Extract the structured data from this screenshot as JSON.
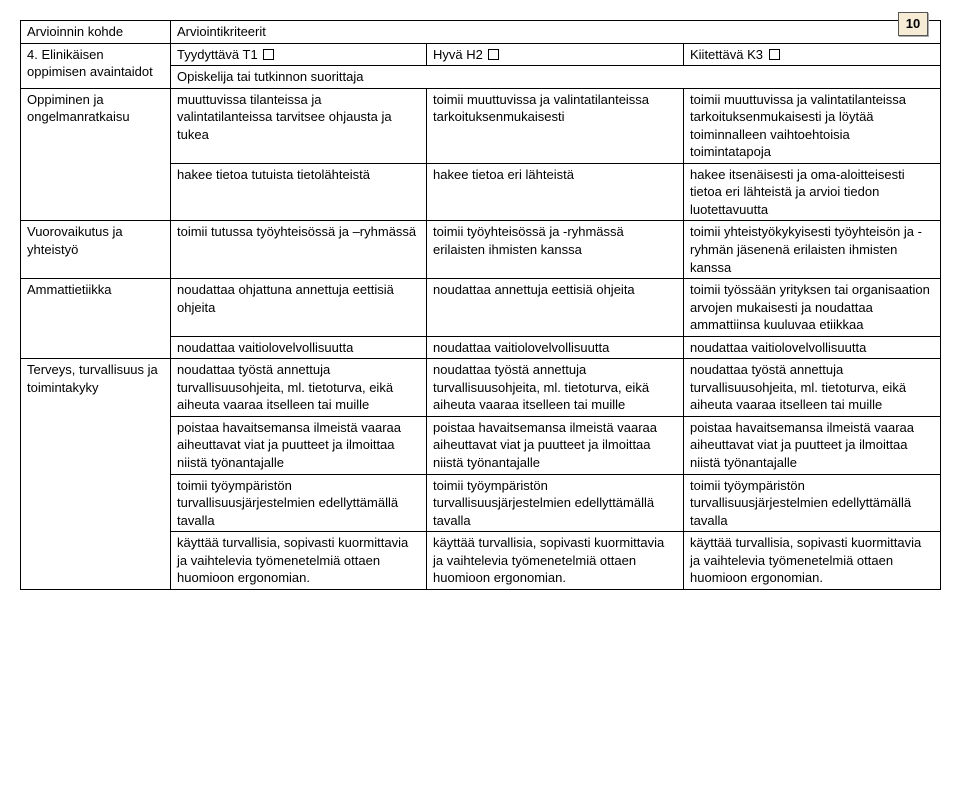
{
  "page_number": "10",
  "header": {
    "targetLabel": "Arvioinnin kohde",
    "criteriaLabel": "Arviointikriteerit",
    "row2Label": "4. Elinikäisen oppimisen avaintaidot",
    "t1": "Tyydyttävä T1",
    "h2": "Hyvä H2",
    "k3": "Kiitettävä K3",
    "opiskelija": "Opiskelija tai tutkinnon suorittaja"
  },
  "rows": {
    "oppiminen": {
      "label": "Oppiminen ja ongelmanratkaisu",
      "r1": {
        "t": "muuttuvissa tilanteissa ja valintatilanteissa tarvitsee ohjausta ja tukea",
        "h": "toimii muuttuvissa ja valintatilanteissa tarkoituksenmukaisesti",
        "k": "toimii muuttuvissa ja valintatilanteissa tarkoituksenmukaisesti ja löytää toiminnalleen vaihtoehtoisia toimintatapoja"
      },
      "r2": {
        "t": "hakee tietoa tutuista tietolähteistä",
        "h": "hakee tietoa eri lähteistä",
        "k": "hakee itsenäisesti ja oma-aloitteisesti tietoa eri lähteistä ja arvioi tiedon luotettavuutta"
      }
    },
    "vuoro": {
      "label": "Vuorovaikutus ja yhteistyö",
      "r1": {
        "t": "toimii tutussa työyhteisössä ja –ryhmässä",
        "h": "toimii työyhteisössä ja -ryhmässä erilaisten ihmisten kanssa",
        "k": "toimii yhteistyökykyisesti työyhteisön ja -ryhmän jäsenenä erilaisten ihmisten kanssa"
      }
    },
    "etiikka": {
      "label": "Ammattietiikka",
      "r1": {
        "t": "noudattaa ohjattuna annettuja eettisiä ohjeita",
        "h": "noudattaa annettuja eettisiä ohjeita",
        "k": "toimii työssään yrityksen tai organisaation arvojen mukaisesti ja noudattaa ammattiinsa kuuluvaa etiikkaa"
      },
      "r2": {
        "t": "noudattaa vaitiolovelvollisuutta",
        "h": "noudattaa vaitiolovelvollisuutta",
        "k": "noudattaa vaitiolovelvollisuutta"
      }
    },
    "terveys": {
      "label": "Terveys, turvallisuus ja toimintakyky",
      "r1": {
        "t": "noudattaa työstä annettuja turvallisuusohjeita, ml. tietoturva, eikä aiheuta vaaraa itselleen tai muille",
        "h": "noudattaa työstä annettuja turvallisuusohjeita, ml. tietoturva, eikä aiheuta vaaraa itselleen tai muille",
        "k": "noudattaa työstä annettuja turvallisuusohjeita, ml. tietoturva, eikä aiheuta vaaraa itselleen tai muille"
      },
      "r2": {
        "t": "poistaa havaitsemansa ilmeistä vaaraa aiheuttavat viat ja puutteet ja ilmoittaa niistä työnantajalle",
        "h": "poistaa havaitsemansa ilmeistä vaaraa aiheuttavat viat ja puutteet ja ilmoittaa niistä työnantajalle",
        "k": "poistaa havaitsemansa ilmeistä vaaraa aiheuttavat viat ja puutteet ja ilmoittaa niistä työnantajalle"
      },
      "r3": {
        "t": "toimii työympäristön turvallisuusjärjestelmien edellyttämällä tavalla",
        "h": "toimii työympäristön turvallisuusjärjestelmien edellyttämällä tavalla",
        "k": "toimii työympäristön turvallisuusjärjestelmien edellyttämällä tavalla"
      },
      "r4": {
        "t": "käyttää turvallisia, sopivasti kuormittavia ja vaihtelevia työmenetelmiä ottaen huomioon ergonomian.",
        "h": "käyttää turvallisia, sopivasti kuormittavia ja vaihtelevia työmenetelmiä ottaen huomioon ergonomian.",
        "k": "käyttää turvallisia, sopivasti kuormittavia ja vaihtelevia työmenetelmiä ottaen huomioon ergonomian."
      }
    }
  }
}
